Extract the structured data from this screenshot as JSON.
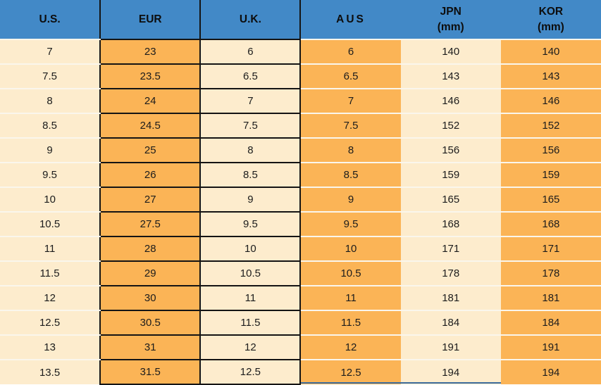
{
  "colors": {
    "header_bg": "#4289c7",
    "header_text": "#0d0d0d",
    "orange": "#fbb456",
    "cream": "#fdeccd",
    "cell_text": "#1c1c1c",
    "dark_border": "#141414",
    "row_separator": "#faf6ec",
    "partial_edge": "#3a6b9c"
  },
  "chart_data": {
    "type": "table",
    "columns": [
      {
        "key": "us",
        "label": "U.S.",
        "sublabel": ""
      },
      {
        "key": "eur",
        "label": "EUR",
        "sublabel": ""
      },
      {
        "key": "uk",
        "label": "U.K.",
        "sublabel": ""
      },
      {
        "key": "aus",
        "label": "AUS",
        "sublabel": ""
      },
      {
        "key": "jpn",
        "label": "JPN",
        "sublabel": "(mm)"
      },
      {
        "key": "kor",
        "label": "KOR",
        "sublabel": "(mm)"
      }
    ],
    "rows": [
      [
        "7",
        "23",
        "6",
        "6",
        "140",
        "140"
      ],
      [
        "7.5",
        "23.5",
        "6.5",
        "6.5",
        "143",
        "143"
      ],
      [
        "8",
        "24",
        "7",
        "7",
        "146",
        "146"
      ],
      [
        "8.5",
        "24.5",
        "7.5",
        "7.5",
        "152",
        "152"
      ],
      [
        "9",
        "25",
        "8",
        "8",
        "156",
        "156"
      ],
      [
        "9.5",
        "26",
        "8.5",
        "8.5",
        "159",
        "159"
      ],
      [
        "10",
        "27",
        "9",
        "9",
        "165",
        "165"
      ],
      [
        "10.5",
        "27.5",
        "9.5",
        "9.5",
        "168",
        "168"
      ],
      [
        "11",
        "28",
        "10",
        "10",
        "171",
        "171"
      ],
      [
        "11.5",
        "29",
        "10.5",
        "10.5",
        "178",
        "178"
      ],
      [
        "12",
        "30",
        "11",
        "11",
        "181",
        "181"
      ],
      [
        "12.5",
        "30.5",
        "11.5",
        "11.5",
        "184",
        "184"
      ],
      [
        "13",
        "31",
        "12",
        "12",
        "191",
        "191"
      ],
      [
        "13.5",
        "31.5",
        "12.5",
        "12.5",
        "194",
        "194"
      ]
    ]
  }
}
